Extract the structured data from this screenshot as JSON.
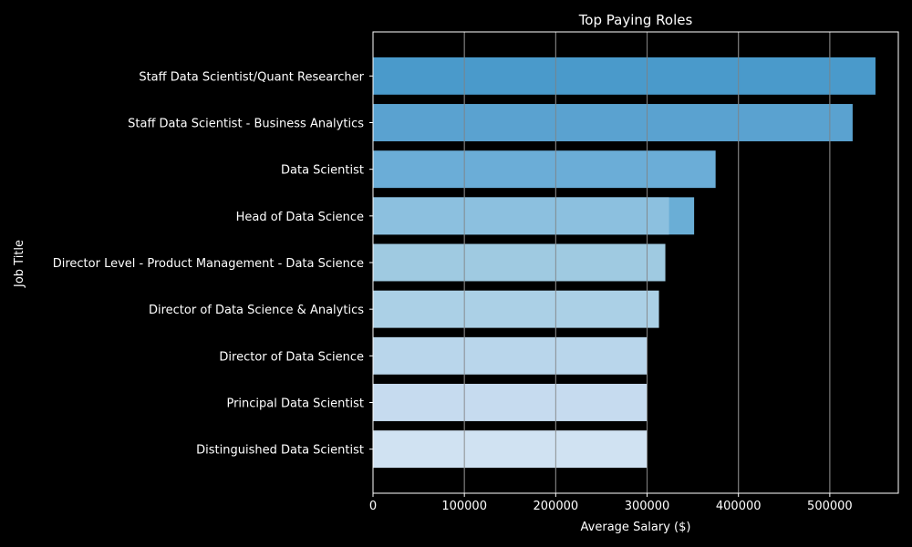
{
  "chart_data": {
    "type": "bar",
    "orientation": "horizontal",
    "title": "Top Paying Roles",
    "xlabel": "Average Salary ($)",
    "ylabel": "Job Title",
    "xlim": [
      0,
      575000
    ],
    "xticks": [
      0,
      100000,
      200000,
      300000,
      400000,
      500000
    ],
    "xtick_labels": [
      "0",
      "100000",
      "200000",
      "300000",
      "400000",
      "500000"
    ],
    "grid": "vertical",
    "categories": [
      "Staff Data Scientist/Quant Researcher",
      "Staff Data Scientist - Business Analytics",
      "Data Scientist",
      "Head of Data Science",
      "Director Level - Product Management - Data Science",
      "Director of Data Science & Analytics",
      "Director of Data Science",
      "Principal Data Scientist",
      "Distinguished Data Scientist"
    ],
    "values": [
      550000,
      525000,
      375000,
      351500,
      320000,
      313000,
      300000,
      300000,
      300000
    ],
    "overlay_values": [
      null,
      null,
      null,
      324000,
      null,
      null,
      null,
      null,
      null
    ],
    "colors": [
      "#4a9acb",
      "#5aa2d0",
      "#6badd7",
      "#8cc0df",
      "#9fcae1",
      "#abd0e6",
      "#b9d6eb",
      "#c6dbef",
      "#d0e2f2"
    ],
    "overlay_color": "#8cc0df",
    "head_segment_color": "#6aaed6",
    "background_color": "#000000",
    "text_color": "#ffffff",
    "grid_color": "#808080"
  }
}
